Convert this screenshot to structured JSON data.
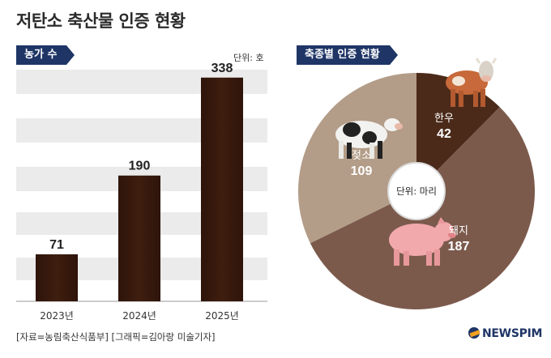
{
  "title": "저탄소 축산물 인증 현황",
  "bar_section": {
    "heading": "농가 수",
    "unit": "단위: 호"
  },
  "pie_section": {
    "heading": "축종별 인증 현황",
    "center_label": "단위: 마리"
  },
  "source": "[자료=농림축산식품부] [그래픽=김아랑 미술기자]",
  "logo": "NEWSPIM",
  "colors": {
    "bar": "#3e1e0f",
    "pie_hanwoo": "#4b2a19",
    "pie_pig": "#7b5a4c",
    "pie_dairy": "#b39d88",
    "ribbon": "#1f3566"
  },
  "icons": [
    "cow-icon",
    "dairy-cow-icon",
    "pig-icon",
    "newspim-logo-icon"
  ],
  "chart_data": [
    {
      "type": "bar",
      "title": "농가 수",
      "categories": [
        "2023년",
        "2024년",
        "2025년"
      ],
      "values": [
        71,
        190,
        338
      ],
      "unit": "단위: 호",
      "ylim": [
        0,
        350
      ],
      "grid": "alternating bands"
    },
    {
      "type": "pie",
      "title": "축종별 인증 현황",
      "labels": [
        "한우",
        "돼지",
        "젖소"
      ],
      "values": [
        42,
        187,
        109
      ],
      "unit": "단위: 마리"
    }
  ]
}
